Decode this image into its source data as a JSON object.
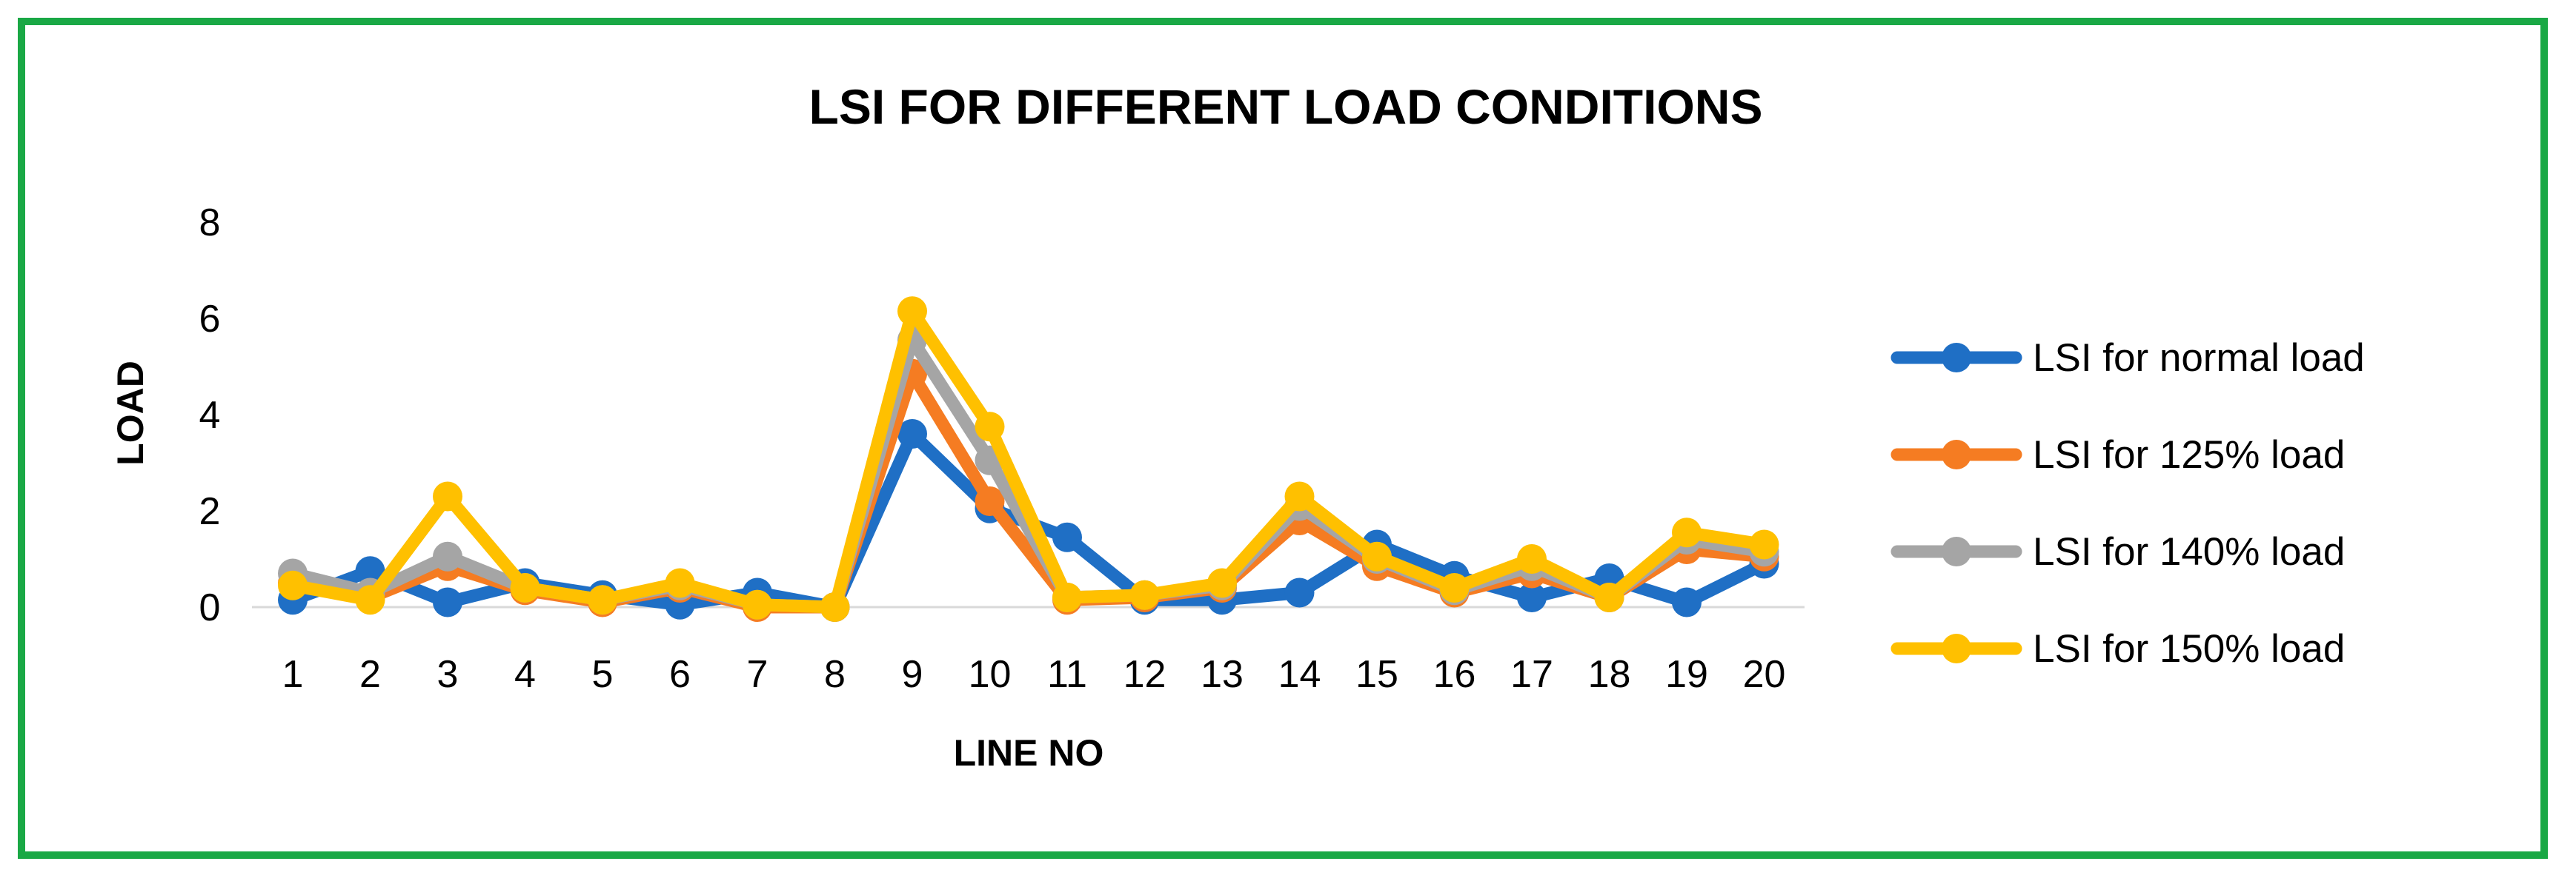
{
  "chart_data": {
    "type": "line",
    "title": "LSI FOR DIFFERENT LOAD CONDITIONS",
    "xlabel": "LINE NO",
    "ylabel": "LOAD",
    "ylim": [
      0,
      8
    ],
    "yticks": [
      "0",
      "2",
      "4",
      "6",
      "8"
    ],
    "categories": [
      "1",
      "2",
      "3",
      "4",
      "5",
      "6",
      "7",
      "8",
      "9",
      "10",
      "11",
      "12",
      "13",
      "14",
      "15",
      "16",
      "17",
      "18",
      "19",
      "20"
    ],
    "grid": false,
    "legend_position": "right",
    "series": [
      {
        "name": "LSI for normal load",
        "color": "#1f6fc5",
        "values": [
          0.15,
          0.75,
          0.1,
          0.5,
          0.25,
          0.05,
          0.3,
          0.0,
          3.6,
          2.05,
          1.45,
          0.15,
          0.15,
          0.3,
          1.3,
          0.65,
          0.2,
          0.6,
          0.1,
          0.9
        ]
      },
      {
        "name": "LSI for 125% load",
        "color": "#f57c22",
        "values": [
          0.5,
          0.2,
          0.85,
          0.35,
          0.1,
          0.4,
          0.0,
          0.0,
          4.85,
          2.2,
          0.15,
          0.2,
          0.4,
          1.8,
          0.85,
          0.3,
          0.7,
          0.2,
          1.2,
          1.05
        ]
      },
      {
        "name": "LSI for 140% load",
        "color": "#a5a5a5",
        "values": [
          0.7,
          0.3,
          1.05,
          0.4,
          0.15,
          0.45,
          0.05,
          0.0,
          5.55,
          3.05,
          0.2,
          0.25,
          0.45,
          2.1,
          1.0,
          0.35,
          0.85,
          0.2,
          1.4,
          1.15
        ]
      },
      {
        "name": "LSI for 150% load",
        "color": "#ffc000",
        "values": [
          0.45,
          0.15,
          2.3,
          0.4,
          0.15,
          0.5,
          0.05,
          0.0,
          6.15,
          3.75,
          0.2,
          0.25,
          0.5,
          2.3,
          1.05,
          0.4,
          1.0,
          0.2,
          1.55,
          1.3
        ]
      }
    ]
  }
}
